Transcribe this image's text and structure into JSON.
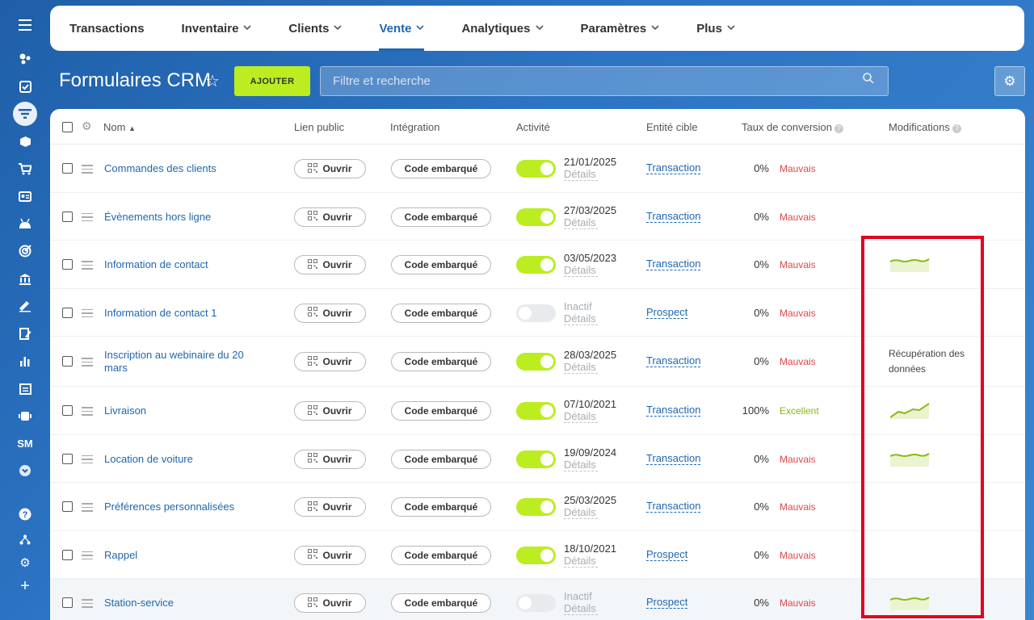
{
  "sidebar": {
    "icons": [
      "menu-icon",
      "sales-icon",
      "tasks-icon",
      "crm-forms-icon",
      "box-icon",
      "cart-icon",
      "contact-card-icon",
      "android-icon",
      "target-icon",
      "bank-icon",
      "signature-icon",
      "document-edit-icon",
      "analytics-icon",
      "calendar-list-icon",
      "video-icon",
      "sm-text",
      "chevron-circle-icon",
      "help-icon",
      "network-icon",
      "settings-icon",
      "add-icon"
    ],
    "sm_label": "SM"
  },
  "topnav": {
    "items": [
      {
        "label": "Transactions",
        "chevron": false
      },
      {
        "label": "Inventaire",
        "chevron": true
      },
      {
        "label": "Clients",
        "chevron": true
      },
      {
        "label": "Vente",
        "chevron": true,
        "active": true
      },
      {
        "label": "Analytiques",
        "chevron": true
      },
      {
        "label": "Paramètres",
        "chevron": true
      },
      {
        "label": "Plus",
        "chevron": true
      }
    ]
  },
  "header": {
    "title": "Formulaires CRM",
    "add_label": "AJOUTER",
    "search_placeholder": "Filtre et recherche"
  },
  "table": {
    "columns": {
      "name": "Nom",
      "public_link": "Lien public",
      "integration": "Intégration",
      "activity": "Activité",
      "entity": "Entité cible",
      "conversion": "Taux de conversion",
      "modifications": "Modifications"
    },
    "open_label": "Ouvrir",
    "embed_label": "Code embarqué",
    "details_label": "Détails",
    "rows": [
      {
        "name": "Commandes des clients",
        "active": true,
        "date": "21/01/2025",
        "entity": "Transaction",
        "pct": "0%",
        "rating": "Mauvais",
        "mod": "none"
      },
      {
        "name": "Évènements hors ligne",
        "active": true,
        "date": "27/03/2025",
        "entity": "Transaction",
        "pct": "0%",
        "rating": "Mauvais",
        "mod": "none"
      },
      {
        "name": "Information de contact",
        "active": true,
        "date": "03/05/2023",
        "entity": "Transaction",
        "pct": "0%",
        "rating": "Mauvais",
        "mod": "flat"
      },
      {
        "name": "Information de contact 1",
        "active": false,
        "date": "Inactif",
        "entity": "Prospect",
        "pct": "0%",
        "rating": "Mauvais",
        "mod": "none"
      },
      {
        "name": "Inscription au webinaire du 20 mars",
        "active": true,
        "date": "28/03/2025",
        "entity": "Transaction",
        "pct": "0%",
        "rating": "Mauvais",
        "mod": "text",
        "mod_text": "Récupération des données"
      },
      {
        "name": "Livraison",
        "active": true,
        "date": "07/10/2021",
        "entity": "Transaction",
        "pct": "100%",
        "rating": "Excellent",
        "mod": "up"
      },
      {
        "name": "Location de voiture",
        "active": true,
        "date": "19/09/2024",
        "entity": "Transaction",
        "pct": "0%",
        "rating": "Mauvais",
        "mod": "flat"
      },
      {
        "name": "Préférences personnalisées",
        "active": true,
        "date": "25/03/2025",
        "entity": "Transaction",
        "pct": "0%",
        "rating": "Mauvais",
        "mod": "none"
      },
      {
        "name": "Rappel",
        "active": true,
        "date": "18/10/2021",
        "entity": "Prospect",
        "pct": "0%",
        "rating": "Mauvais",
        "mod": "none"
      },
      {
        "name": "Station-service",
        "active": false,
        "date": "Inactif",
        "entity": "Prospect",
        "pct": "0%",
        "rating": "Mauvais",
        "mod": "flat"
      }
    ]
  },
  "colors": {
    "accent": "#2067b0",
    "toggle_on": "#bbed21",
    "bad": "#e0474c",
    "good": "#8cb817",
    "highlight": "#e4001b"
  }
}
